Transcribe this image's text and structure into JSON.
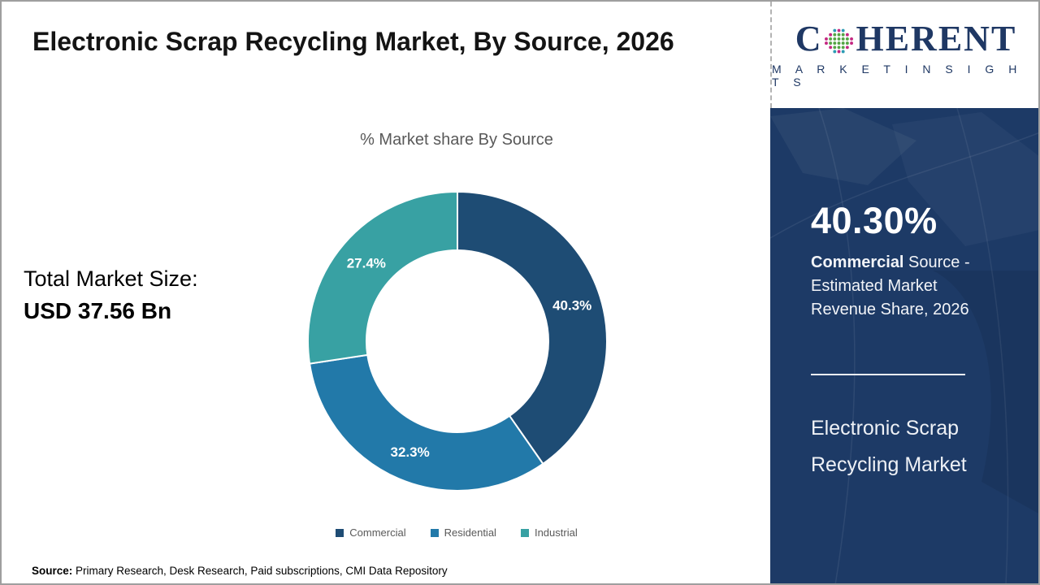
{
  "page": {
    "title": "Electronic Scrap Recycling Market, By Source, 2026",
    "total_market_label": "Total Market Size:",
    "total_market_value": "USD 37.56 Bn",
    "source_label": "Source:",
    "source_text": " Primary Research, Desk Research, Paid subscriptions, CMI Data Repository"
  },
  "logo": {
    "brand_first_letter": "C",
    "brand_rest": "HERENT",
    "globe_icon": "dot-globe-icon",
    "subtitle": "M A R K E T   I N S I G H T S"
  },
  "sidebar": {
    "highlight_value": "40.30%",
    "highlight_bold": "Commercial",
    "highlight_rest": " Source - Estimated Market Revenue Share, 2026",
    "market_name_line1": "Electronic Scrap",
    "market_name_line2": "Recycling Market"
  },
  "colors": {
    "sidebar_bg": "#1d3a66",
    "logo_navy": "#1f3864",
    "commercial": "#1e4c74",
    "residential": "#2279a9",
    "industrial": "#38a1a3"
  },
  "chart_data": {
    "type": "pie",
    "subtype": "donut",
    "title": "% Market share By Source",
    "categories": [
      "Commercial",
      "Residential",
      "Industrial"
    ],
    "values": [
      40.3,
      32.3,
      27.4
    ],
    "labels": [
      "40.3%",
      "32.3%",
      "27.4%"
    ],
    "colors": [
      "#1e4c74",
      "#2279a9",
      "#38a1a3"
    ],
    "start_angle_deg": 0,
    "direction": "clockwise",
    "inner_radius_ratio": 0.61,
    "legend_position": "bottom",
    "data_label_color": "#ffffff"
  }
}
